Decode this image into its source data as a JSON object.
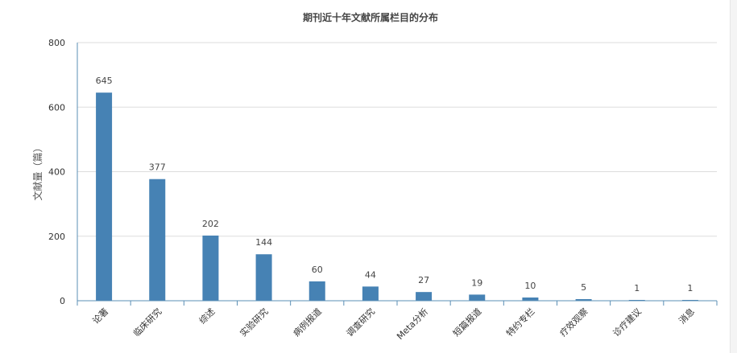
{
  "chart_data": {
    "type": "bar",
    "title": "期刊近十年文献所属栏目的分布",
    "ylabel": "文献量（篇）",
    "xlabel": "",
    "ylim": [
      0,
      800
    ],
    "yticks": [
      0,
      200,
      400,
      600,
      800
    ],
    "grid": true,
    "categories": [
      "论著",
      "临床研究",
      "综述",
      "实验研究",
      "病例报道",
      "调查研究",
      "Meta分析",
      "短篇报道",
      "特约专栏",
      "疗效观察",
      "诊疗建议",
      "消息"
    ],
    "values": [
      645,
      377,
      202,
      144,
      60,
      44,
      27,
      19,
      10,
      5,
      1,
      1
    ],
    "color": "#4682b4"
  }
}
